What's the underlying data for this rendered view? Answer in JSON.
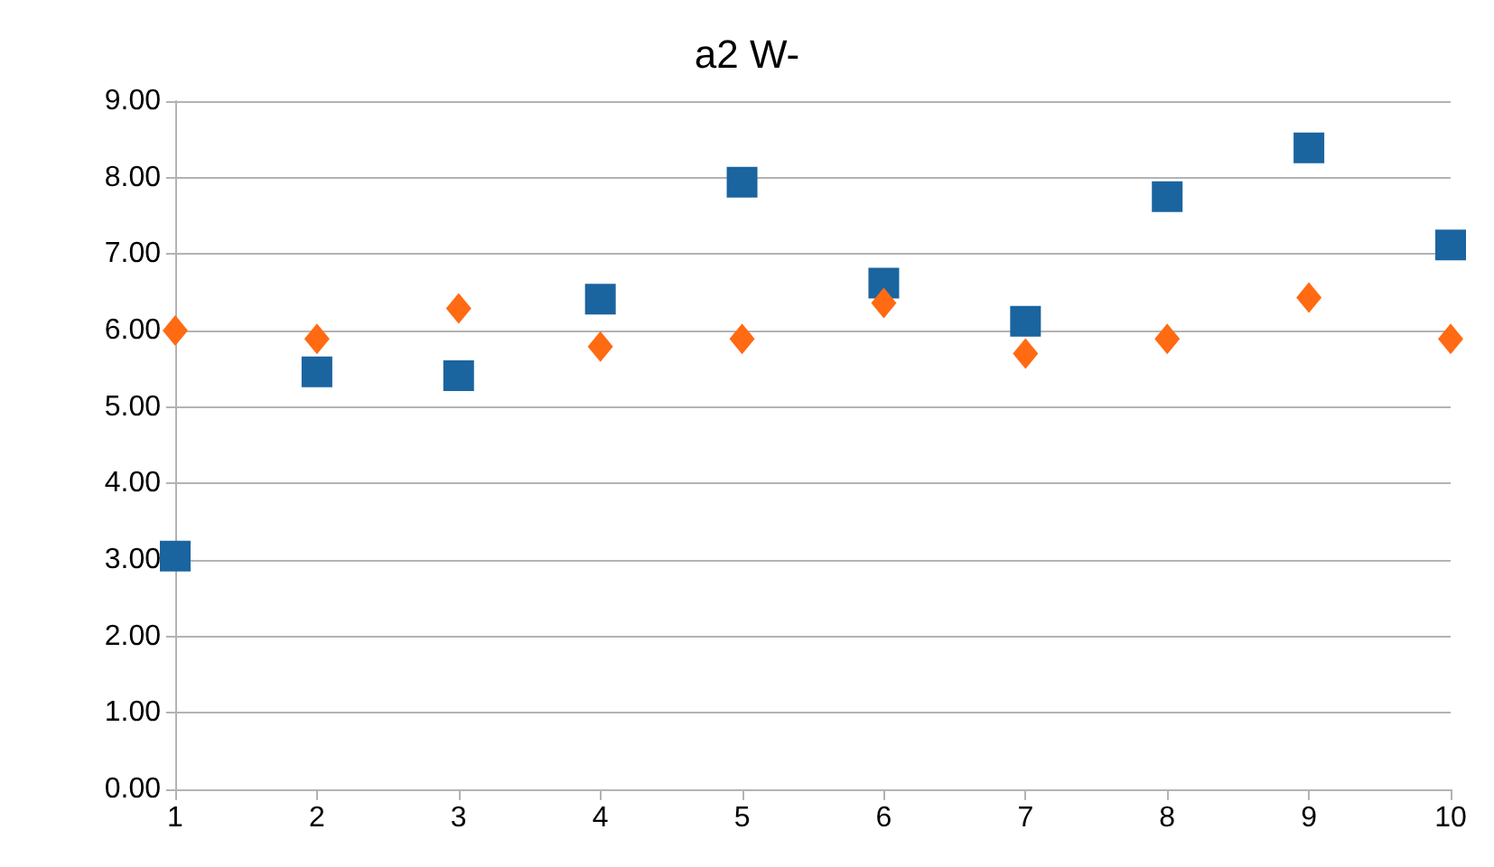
{
  "chart_data": {
    "type": "scatter",
    "title": "a2 W-",
    "x": [
      1,
      2,
      3,
      4,
      5,
      6,
      7,
      8,
      9,
      10
    ],
    "series": [
      {
        "color": "#1a64a0",
        "marker": "square",
        "values": [
          3.05,
          5.46,
          5.41,
          6.41,
          7.94,
          6.62,
          6.12,
          7.75,
          8.39,
          7.12
        ]
      },
      {
        "color": "#ff6a13",
        "marker": "diamond",
        "values": [
          6.0,
          5.89,
          6.29,
          5.79,
          5.89,
          6.36,
          5.7,
          5.89,
          6.43,
          5.89
        ]
      }
    ],
    "xlim": [
      1,
      10
    ],
    "xticks": [
      1,
      2,
      3,
      4,
      5,
      6,
      7,
      8,
      9,
      10
    ],
    "ylim": [
      0,
      9
    ],
    "yticks": [
      {
        "value": 0,
        "label": "0.00"
      },
      {
        "value": 1,
        "label": "1.00"
      },
      {
        "value": 2,
        "label": "2.00"
      },
      {
        "value": 3,
        "label": "3.00"
      },
      {
        "value": 4,
        "label": "4.00"
      },
      {
        "value": 5,
        "label": "5.00"
      },
      {
        "value": 6,
        "label": "6.00"
      },
      {
        "value": 7,
        "label": "7.00"
      },
      {
        "value": 8,
        "label": "8.00"
      },
      {
        "value": 9,
        "label": "9.00"
      }
    ],
    "grid": "y"
  }
}
